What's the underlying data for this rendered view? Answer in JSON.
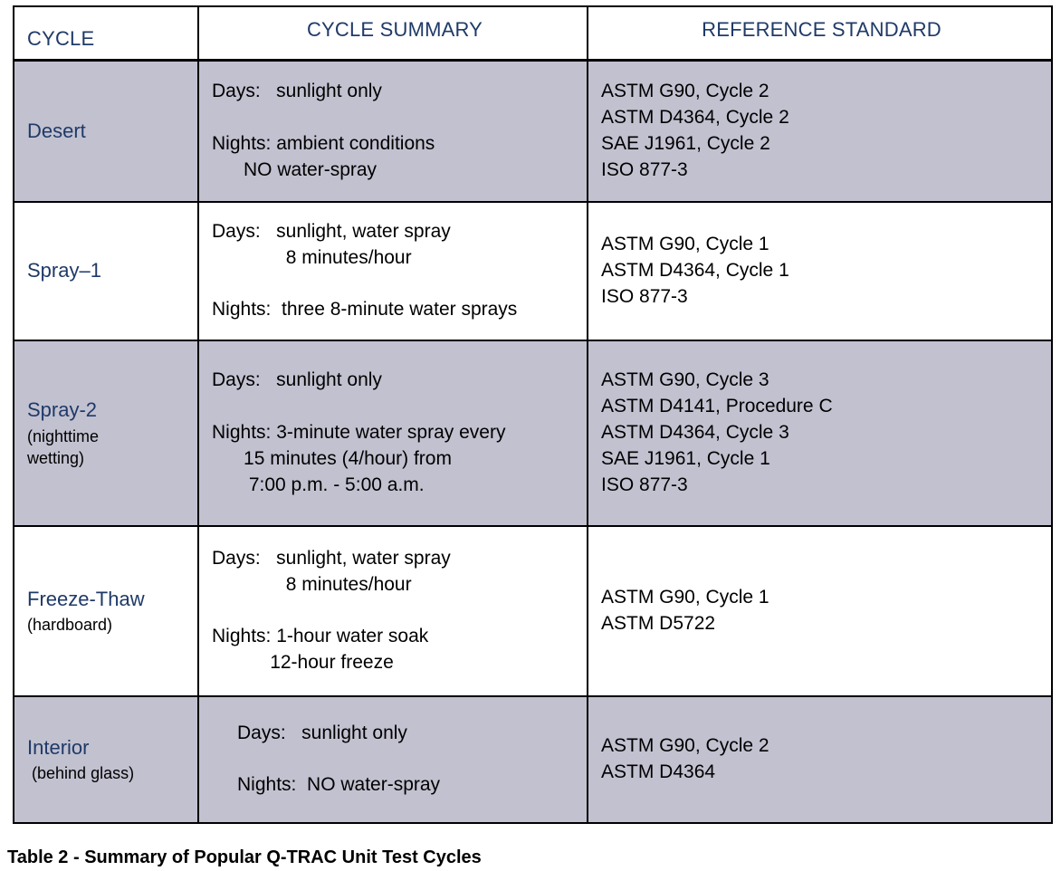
{
  "table": {
    "headers": [
      {
        "label": "CYCLE"
      },
      {
        "label": "CYCLE SUMMARY"
      },
      {
        "label": "REFERENCE STANDARD"
      }
    ],
    "rows": [
      {
        "cycle": "Desert",
        "note": "",
        "summary": "Days:   sunlight only\n\nNights: ambient conditions\n      NO water-spray",
        "reference": "ASTM G90, Cycle 2\nASTM D4364, Cycle 2\nSAE J1961, Cycle 2\nISO 877-3"
      },
      {
        "cycle": "Spray–1",
        "note": "",
        "summary": "Days:   sunlight, water spray\n              8 minutes/hour\n\nNights:  three 8-minute water sprays",
        "reference": "ASTM G90, Cycle 1\nASTM D4364, Cycle 1\nISO 877-3"
      },
      {
        "cycle": "Spray-2",
        "note": "(nighttime\nwetting)",
        "summary": "Days:   sunlight only\n\nNights: 3-minute water spray every\n      15 minutes (4/hour) from\n       7:00 p.m. - 5:00 a.m.",
        "reference": "ASTM G90, Cycle 3\nASTM D4141, Procedure C\nASTM D4364, Cycle 3\nSAE J1961, Cycle 1\nISO 877-3"
      },
      {
        "cycle": "Freeze-Thaw",
        "note": "(hardboard)",
        "summary": "Days:   sunlight, water spray\n              8 minutes/hour\n\nNights: 1-hour water soak\n           12-hour freeze",
        "reference": "ASTM G90, Cycle 1\nASTM D5722"
      },
      {
        "cycle": "Interior",
        "note": " (behind glass)",
        "summary": "Days:   sunlight only\n\nNights:  NO water-spray",
        "reference": "ASTM G90, Cycle 2\nASTM D4364"
      }
    ]
  },
  "caption": "Table 2 - Summary of Popular Q-TRAC Unit Test Cycles",
  "colors": {
    "header_text": "#1f3a68",
    "cycle_name_text": "#1f3a68",
    "body_text": "#000000",
    "row_shade": "#c2c1d0",
    "border": "#000000",
    "background": "#ffffff"
  }
}
